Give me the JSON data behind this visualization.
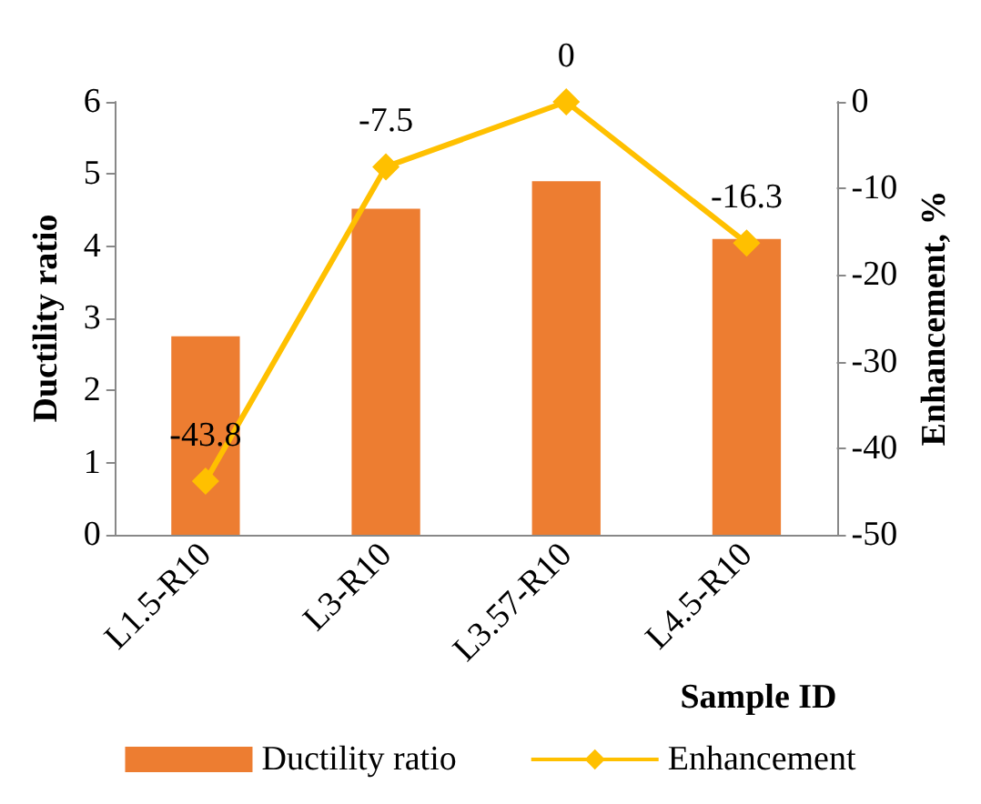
{
  "chart_data": {
    "type": "bar",
    "categories": [
      "L1.5-R10",
      "L3-R10",
      "L3.57-R10",
      "L4.5-R10"
    ],
    "series": [
      {
        "name": "Ductility ratio",
        "color": "#ed7d31",
        "values": [
          2.75,
          4.52,
          4.9,
          4.1
        ]
      },
      {
        "name": "Enhancement",
        "type": "line",
        "axis": "y2",
        "color": "#ffc000",
        "values": [
          -43.8,
          -7.5,
          0,
          -16.3
        ],
        "value_labels": [
          "-43.8",
          "-7.5",
          "0",
          "-16.3"
        ]
      }
    ],
    "xlabel": "Sample ID",
    "ylabel": "Ductility ratio",
    "y2label": "Enhancement, %",
    "ylim": [
      0,
      6
    ],
    "yticks": [
      0,
      1,
      2,
      3,
      4,
      5,
      6
    ],
    "y2lim": [
      -50,
      0
    ],
    "y2ticks": [
      -50,
      -40,
      -30,
      -20,
      -10,
      0
    ],
    "grid": false,
    "legend": "bottom",
    "marker": "diamond",
    "line_style": "solid"
  }
}
